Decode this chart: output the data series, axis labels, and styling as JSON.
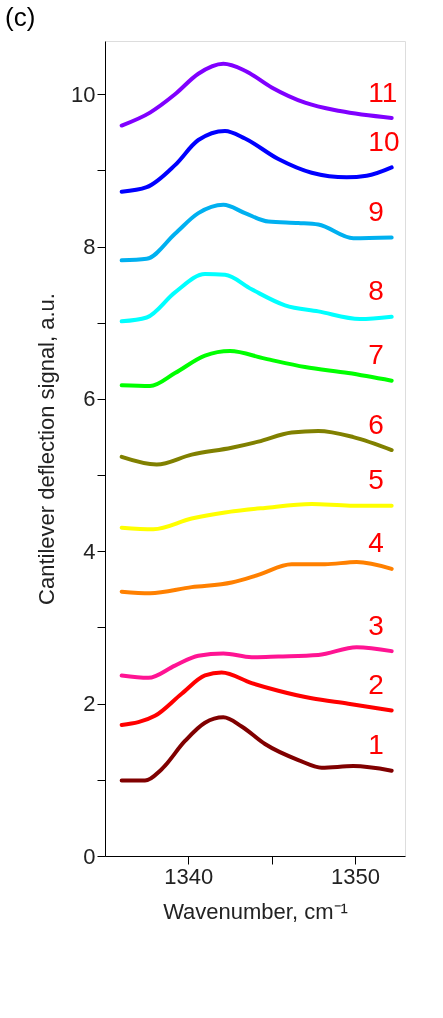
{
  "chart_data": {
    "type": "line",
    "title": "(c)",
    "xlabel": "Wavenumber, cm⁻¹",
    "ylabel": "Cantilever deflection signal, a.u.",
    "xlim": [
      1335,
      1353
    ],
    "xticks": [
      1340,
      {
        "value": 1345,
        "label": null
      },
      1350
    ],
    "ylim": [
      0,
      10.7
    ],
    "yticks": [
      0,
      {
        "value": 1,
        "label": null
      },
      2,
      {
        "value": 3,
        "label": null
      },
      4,
      {
        "value": 5,
        "label": null
      },
      6,
      {
        "value": 7,
        "label": null
      },
      8,
      {
        "value": 9,
        "label": null
      },
      10
    ],
    "grid": false,
    "legend": false,
    "marker": "none",
    "line_style": "solid",
    "series": [
      {
        "name": "1",
        "color": "#800000",
        "x": [
          1336,
          1337.4,
          1338.4,
          1339.8,
          1341,
          1342.1,
          1343.2,
          1344.6,
          1346.6,
          1348,
          1349.9,
          1352.2
        ],
        "values": [
          0.99,
          0.99,
          1.14,
          1.51,
          1.75,
          1.82,
          1.7,
          1.47,
          1.26,
          1.16,
          1.18,
          1.12
        ]
      },
      {
        "name": "2",
        "color": "#ff0000",
        "x": [
          1336,
          1338,
          1339.6,
          1341,
          1342,
          1343.8,
          1345.4,
          1347.4,
          1349.6,
          1352.2
        ],
        "values": [
          1.72,
          1.84,
          2.13,
          2.37,
          2.41,
          2.27,
          2.17,
          2.07,
          2.0,
          1.91
        ]
      },
      {
        "name": "3",
        "color": "#ff1493",
        "x": [
          1336,
          1337.6,
          1339.2,
          1340.6,
          1342.1,
          1343.8,
          1345.4,
          1347.8,
          1350.1,
          1352.2
        ],
        "values": [
          2.37,
          2.34,
          2.5,
          2.63,
          2.66,
          2.61,
          2.62,
          2.64,
          2.74,
          2.69
        ]
      },
      {
        "name": "4",
        "color": "#ff8000",
        "x": [
          1336,
          1337.7,
          1340.2,
          1342.6,
          1344.2,
          1346.2,
          1348.2,
          1350.1,
          1352.2
        ],
        "values": [
          3.47,
          3.45,
          3.53,
          3.59,
          3.69,
          3.83,
          3.83,
          3.86,
          3.77
        ]
      },
      {
        "name": "5",
        "color": "#ffff00",
        "x": [
          1336,
          1337.9,
          1340.2,
          1342.2,
          1344.6,
          1347.4,
          1349.7,
          1352.2
        ],
        "values": [
          4.31,
          4.29,
          4.43,
          4.51,
          4.57,
          4.62,
          4.6,
          4.6
        ]
      },
      {
        "name": "6",
        "color": "#808000",
        "x": [
          1336,
          1338.1,
          1340.2,
          1342.6,
          1344.2,
          1346.2,
          1347.8,
          1349.9,
          1352.2
        ],
        "values": [
          5.24,
          5.14,
          5.27,
          5.36,
          5.44,
          5.56,
          5.58,
          5.5,
          5.33
        ]
      },
      {
        "name": "7",
        "color": "#00ff00",
        "x": [
          1336,
          1337.7,
          1339.2,
          1341,
          1342.5,
          1344.6,
          1347,
          1349.6,
          1352.2
        ],
        "values": [
          6.18,
          6.17,
          6.34,
          6.57,
          6.63,
          6.53,
          6.42,
          6.34,
          6.24
        ]
      },
      {
        "name": "8",
        "color": "#00ffff",
        "x": [
          1336,
          1337.5,
          1339.2,
          1341,
          1342.2,
          1343.8,
          1345.8,
          1347.8,
          1350.3,
          1352.2
        ],
        "values": [
          7.02,
          7.07,
          7.4,
          7.64,
          7.63,
          7.44,
          7.23,
          7.15,
          7.05,
          7.08
        ]
      },
      {
        "name": "9",
        "color": "#00b0f0",
        "x": [
          1336,
          1337.5,
          1339.2,
          1340.6,
          1342.1,
          1343.4,
          1344.8,
          1346.6,
          1347.8,
          1349.9,
          1352.2
        ],
        "values": [
          7.82,
          7.84,
          8.17,
          8.44,
          8.55,
          8.44,
          8.33,
          8.31,
          8.29,
          8.11,
          8.12
        ]
      },
      {
        "name": "10",
        "color": "#0000ff",
        "x": [
          1336,
          1337.5,
          1339.2,
          1340.6,
          1342.2,
          1343.4,
          1345.4,
          1347.4,
          1349.5,
          1350.7,
          1352.2
        ],
        "values": [
          8.72,
          8.78,
          9.07,
          9.4,
          9.52,
          9.42,
          9.15,
          8.97,
          8.91,
          8.93,
          9.04
        ]
      },
      {
        "name": "11",
        "color": "#8000ff",
        "x": [
          1336,
          1337.7,
          1339.2,
          1340.6,
          1342.1,
          1343.4,
          1345,
          1347,
          1349.1,
          1352.2
        ],
        "values": [
          9.59,
          9.76,
          10.0,
          10.27,
          10.4,
          10.31,
          10.09,
          9.89,
          9.78,
          9.69
        ]
      }
    ]
  }
}
